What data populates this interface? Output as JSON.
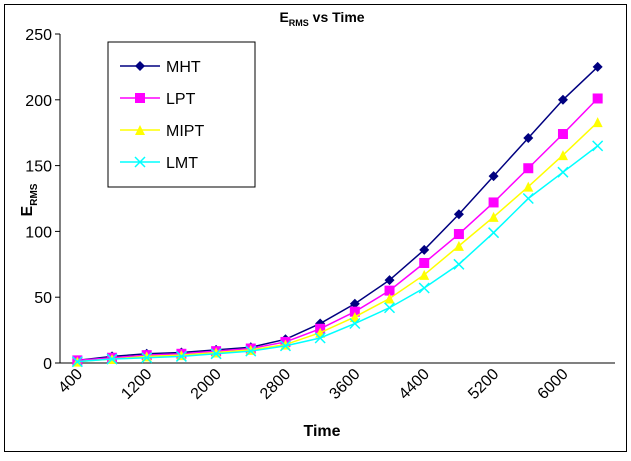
{
  "chart_data": {
    "type": "line",
    "title": {
      "main": "E",
      "sub": "RMS",
      "rest": " vs Time"
    },
    "x_label": "Time",
    "y_label": {
      "main": "E",
      "sub": "RMS"
    },
    "categories": [
      400,
      null,
      1200,
      null,
      2000,
      null,
      2800,
      null,
      3600,
      null,
      4400,
      null,
      5200,
      null,
      6000,
      null
    ],
    "series": [
      {
        "name": "MHT",
        "color": "#000080",
        "marker": "diamond",
        "values": [
          2,
          5,
          7,
          8,
          10,
          12,
          18,
          30,
          45,
          63,
          86,
          113,
          142,
          171,
          200,
          225
        ]
      },
      {
        "name": "LPT",
        "color": "#ff00ff",
        "marker": "square",
        "values": [
          2,
          4,
          6,
          7,
          9,
          11,
          16,
          26,
          39,
          55,
          76,
          98,
          122,
          148,
          174,
          201
        ]
      },
      {
        "name": "MIPT",
        "color": "#ffff00",
        "marker": "triangle",
        "values": [
          1,
          3,
          5,
          6,
          8,
          10,
          14,
          23,
          35,
          49,
          67,
          89,
          111,
          134,
          158,
          183
        ]
      },
      {
        "name": "LMT",
        "color": "#00ffff",
        "marker": "x",
        "values": [
          1,
          3,
          4,
          5,
          7,
          9,
          13,
          19,
          30,
          42,
          57,
          75,
          99,
          125,
          145,
          165
        ]
      }
    ],
    "ylim": [
      0,
      250
    ],
    "yticks": [
      0,
      50,
      100,
      150,
      200,
      250
    ],
    "grid": false,
    "legend": "upper left"
  }
}
